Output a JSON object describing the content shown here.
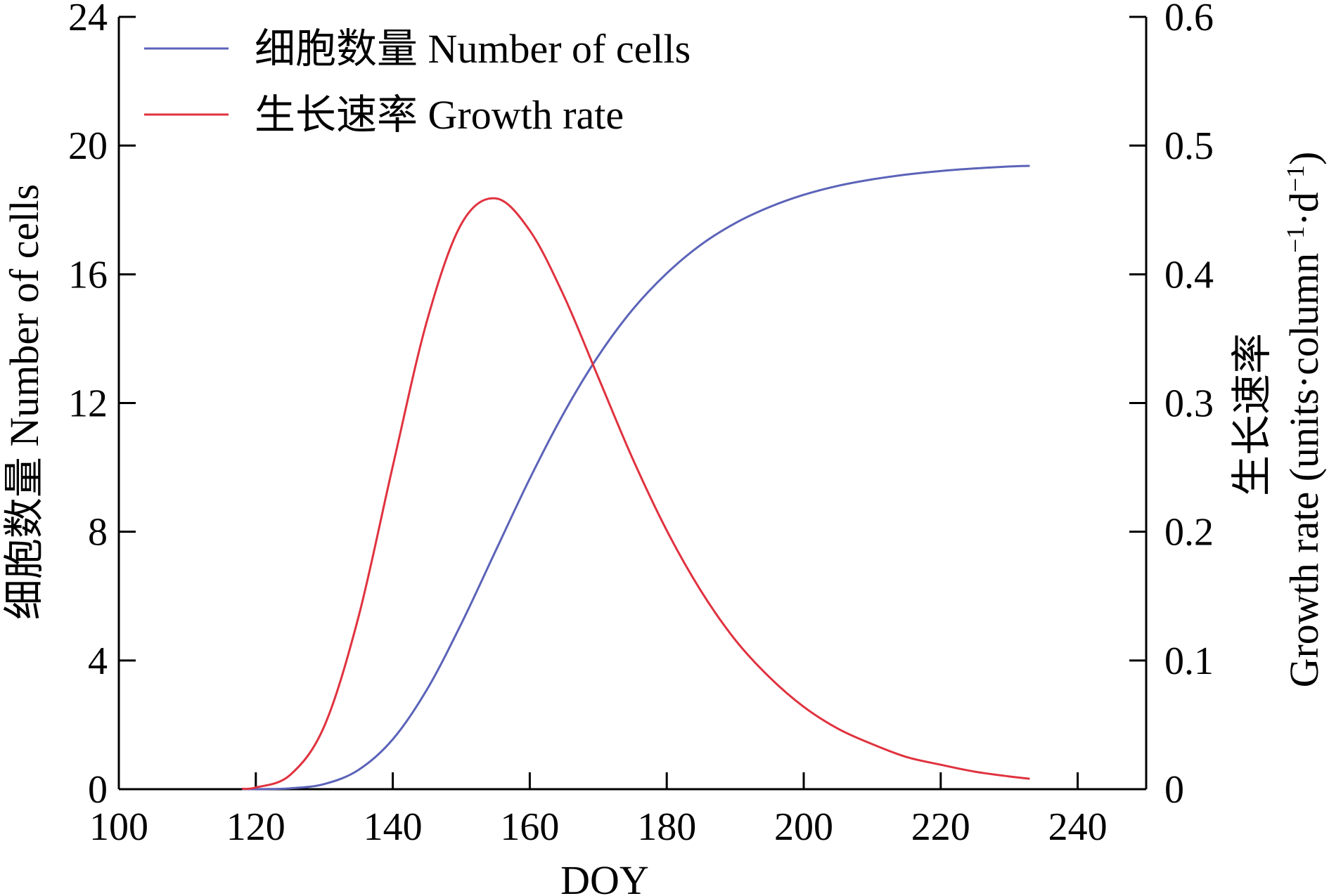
{
  "chart_data": {
    "type": "line",
    "title": "",
    "xlabel": "DOY",
    "ylabel": "细胞数量 Number of cells",
    "y2label_line1": "生长速率",
    "y2label_line2": "Growth rate (units·column",
    "y2label_sup1": "−1",
    "y2label_mid": "·d",
    "y2label_sup2": "−1",
    "y2label_end": ")",
    "xlim": [
      100,
      250
    ],
    "ylim": [
      0,
      24
    ],
    "y2lim": [
      0,
      0.6
    ],
    "xticks": [
      "100",
      "120",
      "140",
      "160",
      "180",
      "200",
      "220",
      "240"
    ],
    "yticks": [
      "0",
      "4",
      "8",
      "12",
      "16",
      "20",
      "24"
    ],
    "y2ticks": [
      "0",
      "0.1",
      "0.2",
      "0.3",
      "0.4",
      "0.5",
      "0.6"
    ],
    "grid": false,
    "legend_position": "top-left",
    "x": [
      118,
      120,
      125,
      130,
      135,
      140,
      145,
      150,
      155,
      160,
      165,
      170,
      175,
      180,
      185,
      190,
      195,
      200,
      205,
      210,
      215,
      220,
      225,
      230,
      233
    ],
    "series": [
      {
        "name": "细胞数量 Number of cells",
        "axis": "left",
        "color": "#5b63b8",
        "values": [
          0.0005,
          0.002,
          0.026,
          0.16,
          0.6,
          1.55,
          3.1,
          5.14,
          7.4,
          9.65,
          11.7,
          13.46,
          14.9,
          16.03,
          16.92,
          17.59,
          18.09,
          18.47,
          18.75,
          18.95,
          19.1,
          19.21,
          19.29,
          19.35,
          19.37
        ]
      },
      {
        "name": "生长速率 Growth rate",
        "axis": "right",
        "color": "#e0323f",
        "values": [
          0.0003,
          0.0013,
          0.011,
          0.049,
          0.134,
          0.251,
          0.364,
          0.439,
          0.459,
          0.434,
          0.383,
          0.32,
          0.257,
          0.201,
          0.154,
          0.116,
          0.087,
          0.064,
          0.047,
          0.035,
          0.025,
          0.019,
          0.0136,
          0.0099,
          0.0081
        ]
      }
    ]
  }
}
